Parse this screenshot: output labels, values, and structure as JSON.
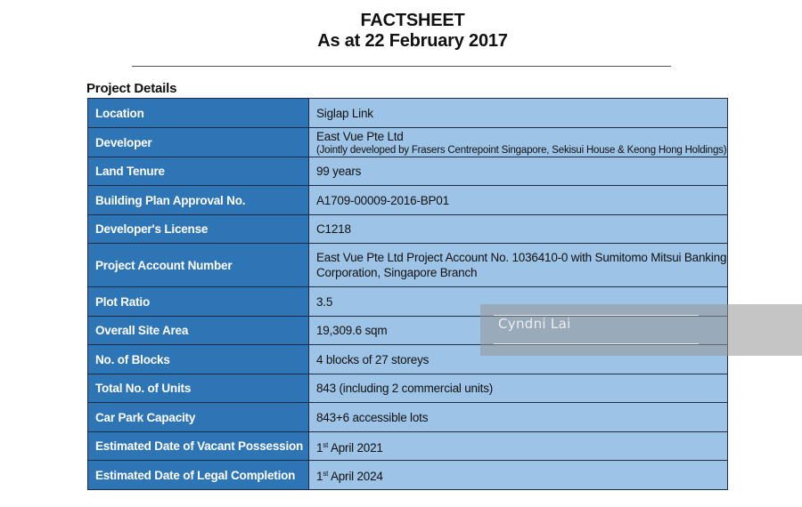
{
  "header": {
    "title": "FACTSHEET",
    "subtitle": "As at 22 February 2017"
  },
  "section": {
    "title": "Project Details"
  },
  "rows": {
    "location": {
      "label": "Location",
      "value": "Siglap Link"
    },
    "developer": {
      "label": "Developer",
      "value": "East Vue Pte Ltd",
      "note": "(Jointly developed by Frasers Centrepoint Singapore, Sekisui House & Keong Hong Holdings)"
    },
    "land_tenure": {
      "label": "Land Tenure",
      "value": "99 years"
    },
    "bp_approval": {
      "label": "Building Plan Approval No.",
      "value": "A1709-00009-2016-BP01"
    },
    "developer_license": {
      "label": "Developer's License",
      "value": "C1218"
    },
    "project_account": {
      "label": "Project Account Number",
      "value_line1": "East Vue Pte Ltd Project Account No. 1036410-0 with Sumitomo Mitsui Banking",
      "value_line2": "Corporation, Singapore Branch"
    },
    "plot_ratio": {
      "label": "Plot Ratio",
      "value": "3.5"
    },
    "site_area": {
      "label": "Overall Site Area",
      "value": "19,309.6 sqm"
    },
    "blocks": {
      "label": "No. of Blocks",
      "value": "4 blocks of 27 storeys"
    },
    "units": {
      "label": "Total No. of Units",
      "value": "843 (including 2 commercial units)"
    },
    "car_park": {
      "label": "Car Park Capacity",
      "value": "843+6 accessible lots"
    },
    "vacant_possession": {
      "label": "Estimated Date of Vacant Possession",
      "day": "1",
      "ordinal": "st",
      "rest": " April 2021"
    },
    "legal_completion": {
      "label": "Estimated Date of Legal Completion",
      "day": "1",
      "ordinal": "st",
      "rest": " April 2024"
    }
  },
  "watermark": {
    "text": "Cyndni Lai",
    "color": "#969696"
  },
  "colors": {
    "label_bg": "#2e75b6",
    "value_bg": "#9dc3e6",
    "border": "#1f2a44"
  }
}
